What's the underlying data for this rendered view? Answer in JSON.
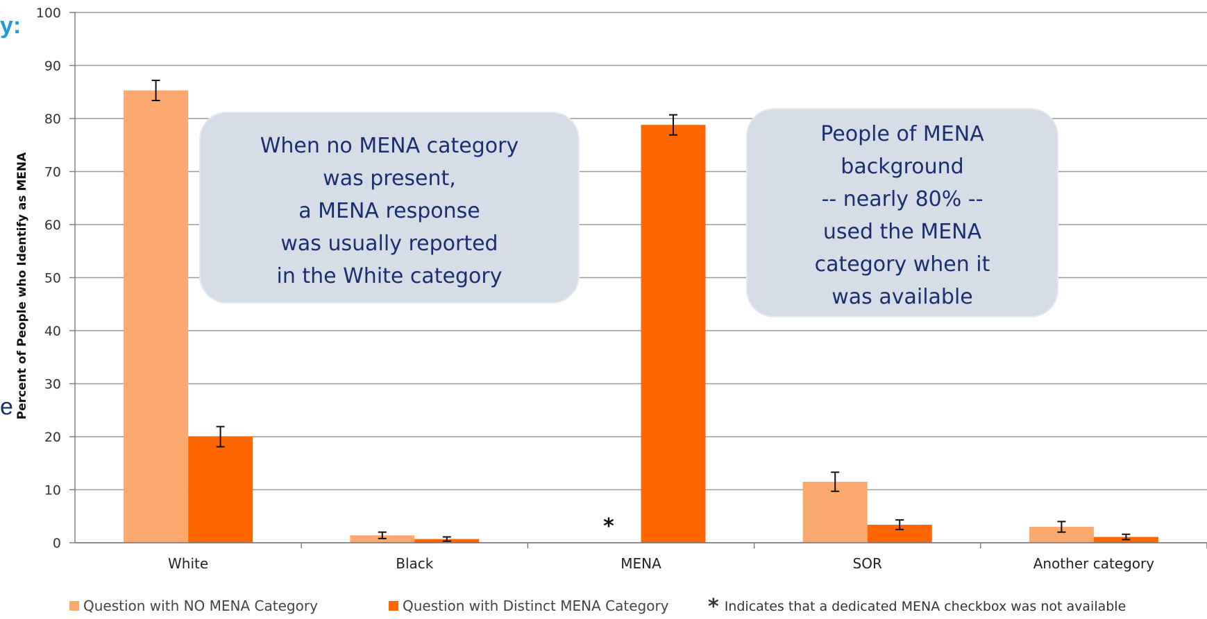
{
  "slide": {
    "title_fragment": "y:",
    "side_fragment": "e"
  },
  "colors": {
    "no_mena": "#fba96e",
    "distinct_mena": "#ff6600",
    "callout_bg": "#d6dde6",
    "callout_text": "#1b2f6e",
    "accent_text": "#1f9bd7"
  },
  "callouts": [
    {
      "lines": [
        "When no MENA category",
        "was present,",
        "a MENA response",
        "was usually reported",
        "in the White category"
      ]
    },
    {
      "lines": [
        "People of MENA",
        "background",
        "-- nearly 80% --",
        "used the MENA",
        "category when it",
        "was available"
      ]
    }
  ],
  "chart_data": {
    "type": "bar",
    "ylabel": "Percent of People who Identify as MENA",
    "xlabel": "",
    "ylim": [
      0,
      100
    ],
    "yticks": [
      0,
      10,
      20,
      30,
      40,
      50,
      60,
      70,
      80,
      90,
      100
    ],
    "grid": true,
    "legend_position": "bottom",
    "categories": [
      "White",
      "Black",
      "MENA",
      "SOR",
      "Another category"
    ],
    "series": [
      {
        "name": "Question with NO MENA Category",
        "color": "#fba96e",
        "values": [
          85.3,
          1.4,
          null,
          11.5,
          3.0
        ],
        "error": [
          1.9,
          0.6,
          null,
          1.8,
          1.0
        ]
      },
      {
        "name": "Question with Distinct MENA Category",
        "color": "#ff6600",
        "values": [
          20.0,
          0.7,
          78.8,
          3.4,
          1.1
        ],
        "error": [
          1.9,
          0.4,
          1.9,
          0.9,
          0.5
        ]
      }
    ],
    "annotations": [
      {
        "category": "MENA",
        "series": "Question with NO MENA Category",
        "text": "*"
      }
    ],
    "footnote": {
      "symbol": "*",
      "text": "Indicates that a dedicated MENA checkbox was not available"
    }
  }
}
